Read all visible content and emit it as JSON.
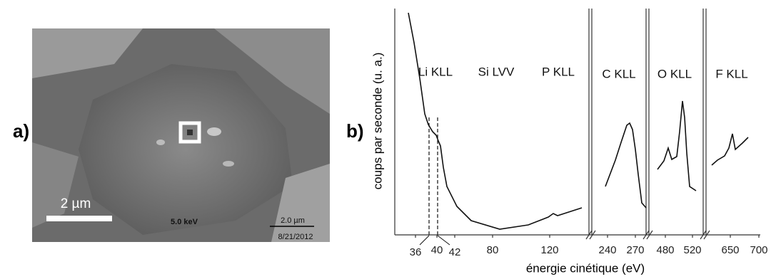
{
  "panel_a": {
    "label": "a)",
    "scale_bar": "2 µm",
    "voltage": "5.0 keV",
    "micro_bar": "2.0 µm",
    "date": "8/21/2012"
  },
  "panel_b": {
    "label": "b)",
    "ylabel": "coups par seconde (u. a.)",
    "xlabel": "énergie cinétique (eV)",
    "annotations": [
      "Li KLL",
      "Si LVV",
      "P KLL",
      "C KLL",
      "O KLL",
      "F KLL"
    ],
    "xticks": [
      "36",
      "40",
      "42",
      "80",
      "120",
      "240",
      "270",
      "480",
      "520",
      "650",
      "700"
    ]
  }
}
